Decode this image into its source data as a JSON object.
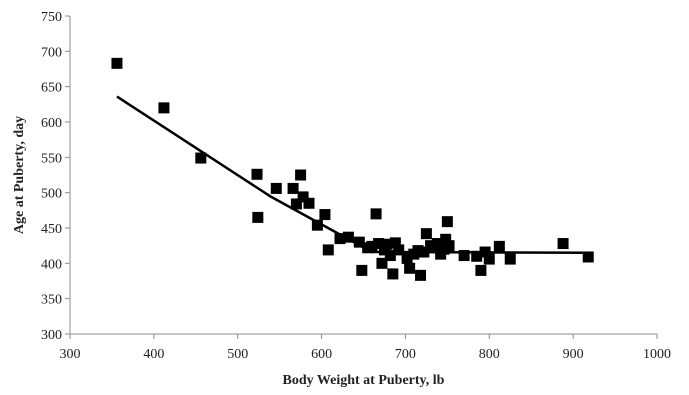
{
  "chart_data": {
    "type": "scatter",
    "xlabel": "Body Weight at Puberty, lb",
    "ylabel": "Age at Puberty, day",
    "xlim": [
      300,
      1000
    ],
    "ylim": [
      300,
      750
    ],
    "xticks": [
      300,
      400,
      500,
      600,
      700,
      800,
      900,
      1000
    ],
    "yticks": [
      300,
      350,
      400,
      450,
      500,
      550,
      600,
      650,
      700,
      750
    ],
    "grid": false,
    "legend": "none",
    "marker_color": "#000000",
    "marker": "square",
    "points": [
      [
        356,
        683
      ],
      [
        412,
        620
      ],
      [
        456,
        549
      ],
      [
        523,
        526
      ],
      [
        524,
        465
      ],
      [
        546,
        506
      ],
      [
        566,
        506
      ],
      [
        570,
        484
      ],
      [
        575,
        525
      ],
      [
        578,
        494
      ],
      [
        585,
        485
      ],
      [
        595,
        454
      ],
      [
        604,
        469
      ],
      [
        608,
        419
      ],
      [
        622,
        435
      ],
      [
        632,
        437
      ],
      [
        645,
        430
      ],
      [
        648,
        390
      ],
      [
        655,
        422
      ],
      [
        660,
        424
      ],
      [
        665,
        470
      ],
      [
        668,
        428
      ],
      [
        672,
        400
      ],
      [
        675,
        419
      ],
      [
        678,
        427
      ],
      [
        682,
        411
      ],
      [
        685,
        385
      ],
      [
        688,
        429
      ],
      [
        692,
        419
      ],
      [
        702,
        407
      ],
      [
        705,
        393
      ],
      [
        710,
        413
      ],
      [
        715,
        418
      ],
      [
        718,
        383
      ],
      [
        722,
        416
      ],
      [
        725,
        442
      ],
      [
        730,
        425
      ],
      [
        738,
        428
      ],
      [
        742,
        413
      ],
      [
        746,
        420
      ],
      [
        748,
        434
      ],
      [
        750,
        459
      ],
      [
        752,
        425
      ],
      [
        770,
        411
      ],
      [
        785,
        410
      ],
      [
        790,
        390
      ],
      [
        795,
        416
      ],
      [
        800,
        406
      ],
      [
        812,
        424
      ],
      [
        825,
        406
      ],
      [
        888,
        428
      ],
      [
        918,
        409
      ]
    ],
    "trendline": [
      [
        356,
        636
      ],
      [
        540,
        494
      ],
      [
        660,
        416
      ],
      [
        918,
        415
      ]
    ]
  }
}
